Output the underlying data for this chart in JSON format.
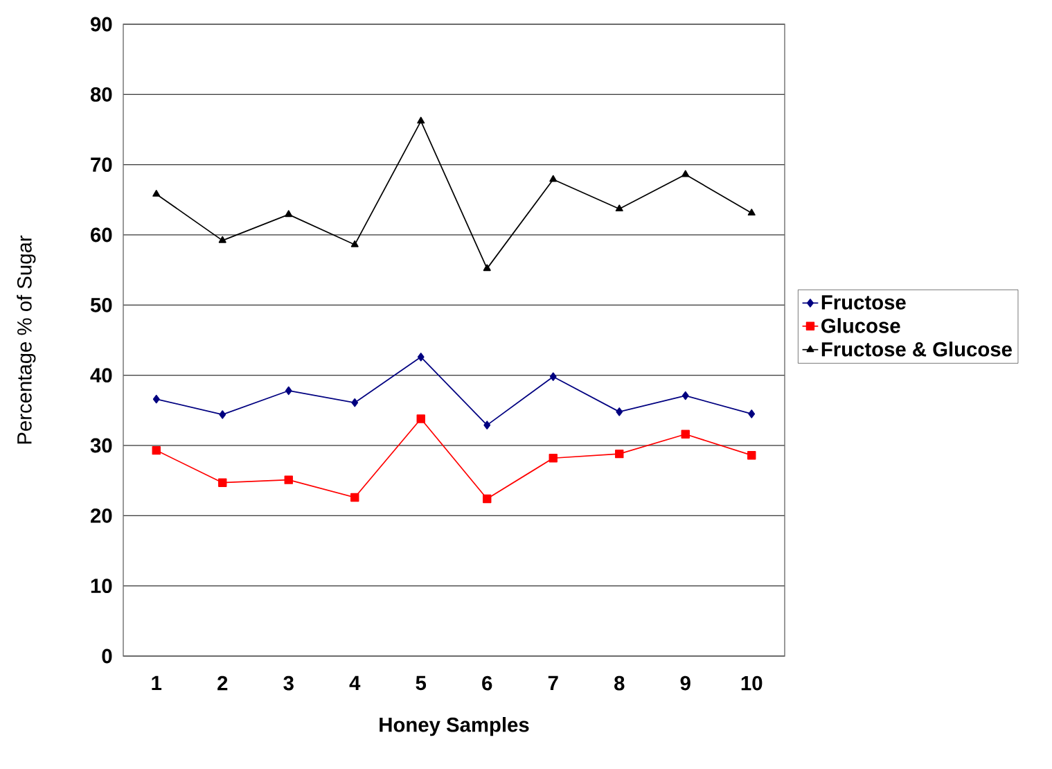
{
  "chart_data": {
    "type": "line",
    "xlabel": "Honey Samples",
    "ylabel": "Percentage % of Sugar",
    "categories": [
      "1",
      "2",
      "3",
      "4",
      "5",
      "6",
      "7",
      "8",
      "9",
      "10"
    ],
    "series": [
      {
        "name": "Fructose",
        "color": "#000080",
        "marker": "diamond",
        "values": [
          36.6,
          34.4,
          37.8,
          36.1,
          42.6,
          32.9,
          39.8,
          34.8,
          37.1,
          34.5
        ]
      },
      {
        "name": "Glucose",
        "color": "#ff0000",
        "marker": "square",
        "values": [
          29.3,
          24.7,
          25.1,
          22.6,
          33.8,
          22.4,
          28.2,
          28.8,
          31.6,
          28.6
        ]
      },
      {
        "name": "Fructose & Glucose",
        "color": "#000000",
        "marker": "triangle",
        "values": [
          65.8,
          59.2,
          62.9,
          58.6,
          76.2,
          55.2,
          67.9,
          63.7,
          68.6,
          63.1
        ]
      }
    ],
    "ylim": [
      0,
      90
    ],
    "yticks": [
      0,
      10,
      20,
      30,
      40,
      50,
      60,
      70,
      80,
      90
    ],
    "grid": "y",
    "legend": "right"
  }
}
